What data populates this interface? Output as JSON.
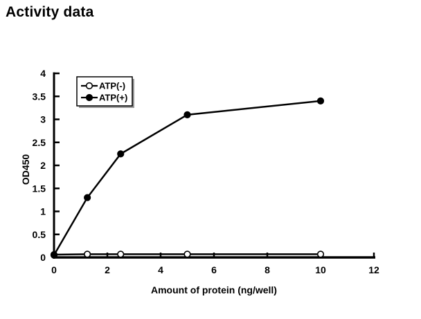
{
  "chart_data": {
    "type": "line",
    "title": "Activity data",
    "xlabel": "Amount of protein (ng/well)",
    "ylabel": "OD450",
    "x": [
      0,
      1.25,
      2.5,
      5,
      10
    ],
    "series": [
      {
        "name": "ATP(-)",
        "marker": "open-circle",
        "values": [
          0.06,
          0.07,
          0.07,
          0.07,
          0.07
        ]
      },
      {
        "name": "ATP(+)",
        "marker": "filled-circle",
        "values": [
          0.05,
          1.3,
          2.25,
          3.1,
          3.4
        ]
      }
    ],
    "xlim": [
      0,
      12
    ],
    "ylim": [
      0,
      4
    ],
    "x_ticks": [
      0,
      2,
      4,
      6,
      8,
      10,
      12
    ],
    "y_ticks": [
      0,
      0.5,
      1,
      1.5,
      2,
      2.5,
      3,
      3.5,
      4
    ],
    "grid": false,
    "legend_position": "top-left-inside",
    "colors": {
      "foreground": "#000000",
      "background": "#ffffff",
      "marker_fill_open": "#ffffff",
      "legend_shadow": "#999999"
    }
  }
}
